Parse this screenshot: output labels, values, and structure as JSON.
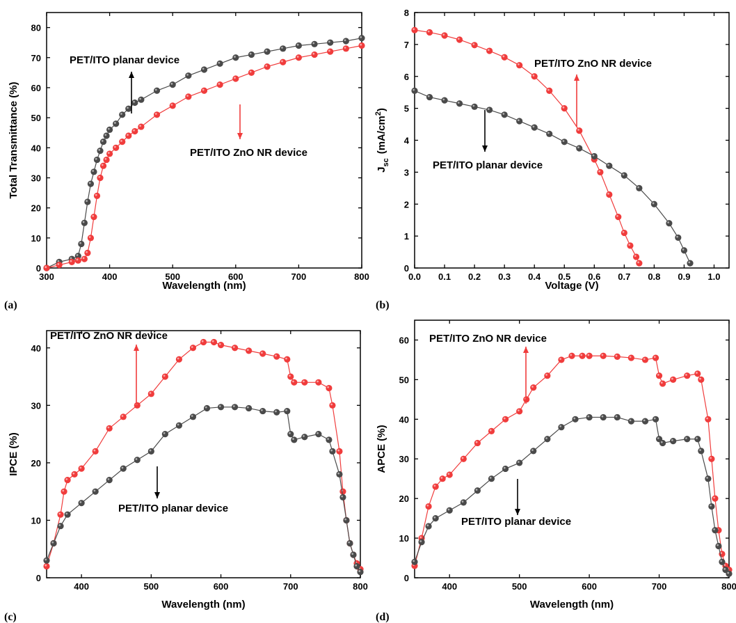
{
  "colors": {
    "red": "#f03c3c",
    "dark": "#4a4a4a"
  },
  "chart_data": [
    {
      "panel": "(a)",
      "type": "scatter",
      "xlabel": "Wavelength (nm)",
      "ylabel": "Total Transmittance (%)",
      "xlim": [
        300,
        800
      ],
      "ylim": [
        0,
        85
      ],
      "xticks": [
        300,
        400,
        500,
        600,
        700,
        800
      ],
      "yticks": [
        0,
        10,
        20,
        30,
        40,
        50,
        60,
        70,
        80
      ],
      "annotations": [
        {
          "text": "PET/ITO planar device",
          "arrow": "up",
          "color": "#000000"
        },
        {
          "text": "PET/ITO ZnO NR device",
          "arrow": "down",
          "color": "#f03c3c"
        }
      ],
      "series": [
        {
          "name": "PET/ITO planar device",
          "color": "#4a4a4a",
          "x": [
            300,
            320,
            340,
            350,
            355,
            360,
            365,
            370,
            375,
            380,
            385,
            390,
            395,
            400,
            410,
            420,
            430,
            440,
            450,
            475,
            500,
            525,
            550,
            575,
            600,
            625,
            650,
            675,
            700,
            725,
            750,
            775,
            800
          ],
          "y": [
            0,
            2,
            3,
            4,
            8,
            15,
            22,
            28,
            32,
            36,
            39,
            42,
            44,
            46,
            48,
            51,
            53,
            55,
            56,
            59,
            61,
            64,
            66,
            68,
            70,
            71,
            72,
            73,
            74,
            74.5,
            75,
            75.5,
            76.5
          ]
        },
        {
          "name": "PET/ITO ZnO NR device",
          "color": "#f03c3c",
          "x": [
            300,
            320,
            340,
            350,
            360,
            365,
            370,
            375,
            380,
            385,
            390,
            395,
            400,
            410,
            420,
            430,
            440,
            450,
            475,
            500,
            525,
            550,
            575,
            600,
            625,
            650,
            675,
            700,
            725,
            750,
            775,
            800
          ],
          "y": [
            0,
            1,
            2,
            2.5,
            3,
            5,
            10,
            17,
            24,
            30,
            34,
            36,
            38,
            40,
            42,
            44,
            45.5,
            47,
            51,
            54,
            57,
            59,
            61,
            63,
            65,
            67,
            68.5,
            70,
            71,
            72,
            73,
            74
          ]
        }
      ]
    },
    {
      "panel": "(b)",
      "type": "scatter",
      "xlabel": "Voltage (V)",
      "ylabel_main": "J",
      "ylabel_sub": "sc",
      "ylabel_unit": "(mA/cm",
      "ylabel_sup": "2",
      "ylabel_close": ")",
      "xlim": [
        0,
        1.05
      ],
      "ylim": [
        0,
        8
      ],
      "xticks": [
        0.0,
        0.1,
        0.2,
        0.3,
        0.4,
        0.5,
        0.6,
        0.7,
        0.8,
        0.9,
        1.0
      ],
      "xtick_labels": [
        "0.0",
        "0.1",
        "0.2",
        "0.3",
        "0.4",
        "0.5",
        "0.6",
        "0.7",
        "0.8",
        "0.9",
        "1.0"
      ],
      "yticks": [
        0,
        1,
        2,
        3,
        4,
        5,
        6,
        7,
        8
      ],
      "annotations": [
        {
          "text": "PET/ITO ZnO NR device",
          "arrow": "up",
          "color": "#f03c3c"
        },
        {
          "text": "PET/ITO planar device",
          "arrow": "down",
          "color": "#000000"
        }
      ],
      "series": [
        {
          "name": "PET/ITO ZnO NR device",
          "color": "#f03c3c",
          "x": [
            0,
            0.05,
            0.1,
            0.15,
            0.2,
            0.25,
            0.3,
            0.35,
            0.4,
            0.45,
            0.5,
            0.55,
            0.6,
            0.62,
            0.65,
            0.68,
            0.7,
            0.72,
            0.74,
            0.75
          ],
          "y": [
            7.45,
            7.38,
            7.28,
            7.15,
            6.98,
            6.8,
            6.6,
            6.35,
            6.0,
            5.55,
            5.0,
            4.3,
            3.4,
            3.0,
            2.3,
            1.6,
            1.1,
            0.7,
            0.35,
            0.15
          ]
        },
        {
          "name": "PET/ITO planar device",
          "color": "#4a4a4a",
          "x": [
            0,
            0.05,
            0.1,
            0.15,
            0.2,
            0.25,
            0.3,
            0.35,
            0.4,
            0.45,
            0.5,
            0.55,
            0.6,
            0.65,
            0.7,
            0.75,
            0.8,
            0.85,
            0.88,
            0.9,
            0.92
          ],
          "y": [
            5.55,
            5.35,
            5.25,
            5.15,
            5.05,
            4.95,
            4.8,
            4.6,
            4.4,
            4.2,
            3.95,
            3.75,
            3.5,
            3.2,
            2.9,
            2.5,
            2.0,
            1.4,
            0.95,
            0.55,
            0.15
          ]
        }
      ]
    },
    {
      "panel": "(c)",
      "type": "scatter",
      "xlabel": "Wavelength (nm)",
      "ylabel": "IPCE (%)",
      "xlim": [
        350,
        800
      ],
      "ylim": [
        0,
        43
      ],
      "xticks": [
        400,
        500,
        600,
        700,
        800
      ],
      "yticks": [
        0,
        10,
        20,
        30,
        40
      ],
      "annotations": [
        {
          "text": "PET/ITO ZnO NR device",
          "arrow": "up",
          "color": "#f03c3c"
        },
        {
          "text": "PET/ITO planar device",
          "arrow": "down",
          "color": "#000000"
        }
      ],
      "series": [
        {
          "name": "PET/ITO ZnO NR device",
          "color": "#f03c3c",
          "x": [
            350,
            360,
            370,
            375,
            380,
            390,
            400,
            420,
            440,
            460,
            480,
            500,
            520,
            540,
            560,
            575,
            590,
            600,
            620,
            640,
            660,
            680,
            695,
            700,
            705,
            720,
            740,
            755,
            760,
            770,
            775,
            780,
            785,
            790,
            795,
            800
          ],
          "y": [
            2,
            6,
            11,
            15,
            17,
            18,
            19,
            22,
            26,
            28,
            30,
            32,
            35,
            38,
            40,
            41,
            41,
            40.5,
            40,
            39.5,
            39,
            38.5,
            38,
            35,
            34,
            34,
            34,
            33,
            30,
            22,
            15,
            10,
            6,
            4,
            2.5,
            1.5
          ]
        },
        {
          "name": "PET/ITO planar device",
          "color": "#4a4a4a",
          "x": [
            350,
            360,
            370,
            380,
            400,
            420,
            440,
            460,
            480,
            500,
            520,
            540,
            560,
            580,
            600,
            620,
            640,
            660,
            680,
            695,
            700,
            705,
            720,
            740,
            755,
            760,
            770,
            775,
            780,
            785,
            790,
            795,
            800
          ],
          "y": [
            3,
            6,
            9,
            11,
            13,
            15,
            17,
            19,
            20.5,
            22,
            25,
            26.5,
            28,
            29.5,
            29.7,
            29.7,
            29.5,
            29,
            28.8,
            29,
            25,
            24,
            24.5,
            25,
            24,
            22,
            18,
            14,
            10,
            6,
            4,
            2,
            1
          ]
        }
      ]
    },
    {
      "panel": "(d)",
      "type": "scatter",
      "xlabel": "Wavelength (nm)",
      "ylabel": "APCE (%)",
      "xlim": [
        350,
        800
      ],
      "ylim": [
        0,
        65
      ],
      "xticks": [
        400,
        500,
        600,
        700,
        800
      ],
      "yticks": [
        0,
        10,
        20,
        30,
        40,
        50,
        60
      ],
      "annotations": [
        {
          "text": "PET/ITO ZnO NR device",
          "arrow": "up",
          "color": "#f03c3c"
        },
        {
          "text": "PET/ITO planar device",
          "arrow": "down",
          "color": "#000000"
        }
      ],
      "series": [
        {
          "name": "PET/ITO ZnO NR device",
          "color": "#f03c3c",
          "x": [
            350,
            360,
            370,
            380,
            390,
            400,
            420,
            440,
            460,
            480,
            500,
            510,
            520,
            540,
            560,
            575,
            590,
            600,
            620,
            640,
            660,
            680,
            695,
            700,
            705,
            720,
            740,
            755,
            760,
            770,
            775,
            780,
            785,
            790,
            795,
            800
          ],
          "y": [
            3,
            10,
            18,
            23,
            25,
            26,
            30,
            34,
            37,
            40,
            42,
            45,
            48,
            51,
            55,
            56,
            56,
            56,
            56,
            55.8,
            55.5,
            55,
            55.5,
            51,
            49,
            50,
            51,
            51.5,
            50,
            40,
            30,
            20,
            12,
            6,
            3,
            2
          ]
        },
        {
          "name": "PET/ITO planar device",
          "color": "#4a4a4a",
          "x": [
            350,
            360,
            370,
            380,
            400,
            420,
            440,
            460,
            480,
            500,
            520,
            540,
            560,
            580,
            600,
            620,
            640,
            660,
            680,
            695,
            700,
            705,
            720,
            740,
            755,
            760,
            770,
            775,
            780,
            785,
            790,
            795,
            800
          ],
          "y": [
            4,
            9,
            13,
            15,
            17,
            19,
            22,
            25,
            27.5,
            29,
            32,
            35,
            38,
            40,
            40.5,
            40.5,
            40.5,
            39.5,
            39.5,
            40,
            35,
            34,
            34.5,
            35,
            35,
            32,
            25,
            18,
            12,
            8,
            4,
            2,
            1
          ]
        }
      ]
    }
  ]
}
